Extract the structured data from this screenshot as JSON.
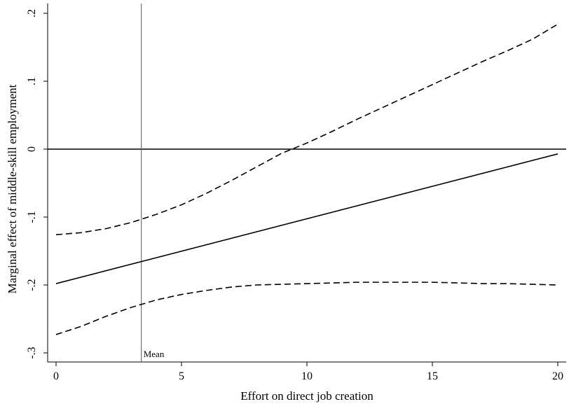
{
  "chart_data": {
    "type": "line",
    "title": "",
    "xlabel": "Effort on direct job creation",
    "ylabel": "Marginal effect of middle-skill employment",
    "xlim": [
      0,
      20
    ],
    "ylim": [
      -0.3,
      0.2
    ],
    "xticks": [
      0,
      5,
      10,
      15,
      20
    ],
    "xtick_labels": [
      "0",
      "5",
      "10",
      "15",
      "20"
    ],
    "yticks": [
      -0.3,
      -0.2,
      -0.1,
      0,
      0.1,
      0.2
    ],
    "ytick_labels": [
      "-.3",
      "-.2",
      "-.1",
      "0",
      ".1",
      ".2"
    ],
    "grid": false,
    "legend": "none",
    "reference_lines": {
      "horizontal_y": 0,
      "vertical_x": 3.4,
      "vertical_label": "Mean"
    },
    "series": [
      {
        "style": "solid",
        "x": [
          0,
          20
        ],
        "values": [
          -0.198,
          -0.007
        ]
      },
      {
        "style": "dashed",
        "x": [
          0,
          1,
          2,
          3,
          4,
          5,
          6,
          7,
          8,
          9,
          10,
          11,
          12,
          13,
          14,
          15,
          16,
          17,
          18,
          19,
          20
        ],
        "values": [
          -0.126,
          -0.123,
          -0.117,
          -0.108,
          -0.096,
          -0.082,
          -0.065,
          -0.046,
          -0.026,
          -0.006,
          0.009,
          0.026,
          0.044,
          0.061,
          0.078,
          0.095,
          0.112,
          0.129,
          0.145,
          0.162,
          0.184
        ]
      },
      {
        "style": "dashed",
        "x": [
          0,
          1,
          2,
          3,
          4,
          5,
          6,
          7,
          8,
          9,
          10,
          11,
          12,
          13,
          14,
          15,
          16,
          17,
          18,
          19,
          20
        ],
        "values": [
          -0.273,
          -0.261,
          -0.246,
          -0.233,
          -0.222,
          -0.214,
          -0.208,
          -0.203,
          -0.2,
          -0.199,
          -0.198,
          -0.197,
          -0.196,
          -0.196,
          -0.196,
          -0.196,
          -0.197,
          -0.198,
          -0.198,
          -0.199,
          -0.2
        ]
      }
    ]
  }
}
